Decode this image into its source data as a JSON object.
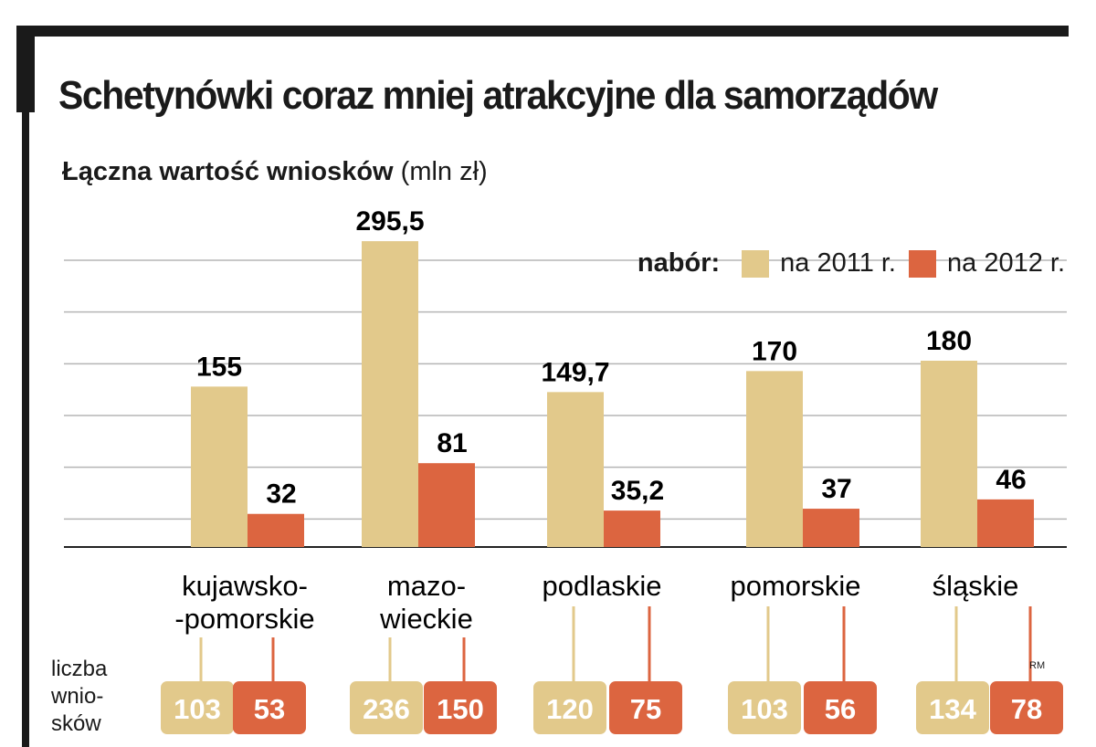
{
  "header": {
    "title": "Schetynówki coraz mniej atrakcyjne dla samorządów",
    "subtitle_bold": "Łączna wartość wniosków",
    "subtitle_unit": "(mln zł)"
  },
  "legend": {
    "title": "nabór:",
    "items": [
      {
        "label": "na 2011 r.",
        "color": "#e2c98b"
      },
      {
        "label": "na 2012 r.",
        "color": "#dc6540"
      }
    ]
  },
  "counts": {
    "title_lines": [
      "liczba",
      "wnio-",
      "sków"
    ]
  },
  "credit": "RM",
  "chart_data": {
    "type": "bar",
    "title": "Łączna wartość wniosków (mln zł)",
    "categories": [
      [
        "kujawsko-",
        "-pomorskie"
      ],
      [
        "mazo-",
        "wieckie"
      ],
      [
        "podlaskie"
      ],
      [
        "pomorskie"
      ],
      [
        "śląskie"
      ]
    ],
    "series": [
      {
        "name": "na 2011 r.",
        "color": "#e2c98b",
        "values": [
          155,
          295.5,
          149.7,
          170,
          180
        ],
        "labels": [
          "155",
          "295,5",
          "149,7",
          "170",
          "180"
        ],
        "counts": [
          "103",
          "236",
          "120",
          "103",
          "134"
        ]
      },
      {
        "name": "na 2012 r.",
        "color": "#dc6540",
        "values": [
          32,
          81,
          35.2,
          37,
          46
        ],
        "labels": [
          "32",
          "81",
          "35,2",
          "37",
          "46"
        ],
        "counts": [
          "53",
          "150",
          "75",
          "56",
          "78"
        ]
      }
    ],
    "ylim": [
      0,
      300
    ],
    "grid": true,
    "legend_position": "top-right"
  }
}
